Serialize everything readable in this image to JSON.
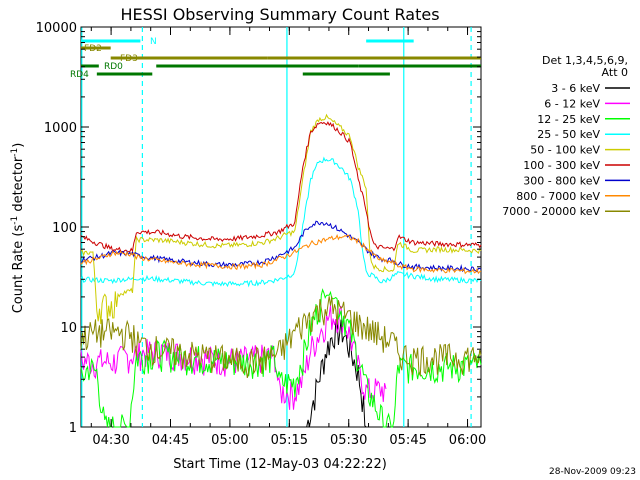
{
  "chart_data": {
    "type": "line",
    "title": "HESSI Observing Summary Count Rates",
    "xlabel": "Start Time (12-May-03 04:22:22)",
    "ylabel_main": "Count Rate (s",
    "ylabel_sup1": "-1",
    "ylabel_mid": " detector",
    "ylabel_sup2": "-1",
    "ylabel_end": ")",
    "y_scale": "log",
    "ylim": [
      1,
      10000
    ],
    "xlim_minutes": [
      0,
      101
    ],
    "x_ticks": [
      {
        "label": "04:30",
        "t": 7.6
      },
      {
        "label": "04:45",
        "t": 22.6
      },
      {
        "label": "05:00",
        "t": 37.6
      },
      {
        "label": "05:15",
        "t": 52.6
      },
      {
        "label": "05:30",
        "t": 67.6
      },
      {
        "label": "05:45",
        "t": 82.6
      },
      {
        "label": "06:00",
        "t": 97.6
      }
    ],
    "y_ticks": [
      {
        "label": "1",
        "v": 1
      },
      {
        "label": "10",
        "v": 10
      },
      {
        "label": "100",
        "v": 100
      },
      {
        "label": "1000",
        "v": 1000
      },
      {
        "label": "10000",
        "v": 10000
      }
    ],
    "legend_header": [
      "Det 1,3,4,5,6,9,",
      "Att 0"
    ],
    "legend_placement": "right",
    "series": [
      {
        "name": "3 - 6 keV",
        "color": "#000000",
        "points": [
          [
            57,
            1
          ],
          [
            60,
            3
          ],
          [
            62,
            6
          ],
          [
            64,
            9
          ],
          [
            66,
            9
          ],
          [
            68,
            6
          ],
          [
            70,
            3.5
          ],
          [
            71,
            2
          ],
          [
            72,
            1
          ]
        ]
      },
      {
        "name": "6 - 12 keV",
        "color": "#ff00ff",
        "points": [
          [
            0,
            4.6
          ],
          [
            8,
            4.5
          ],
          [
            14,
            5.5
          ],
          [
            20,
            5.8
          ],
          [
            26,
            5.3
          ],
          [
            34,
            4.8
          ],
          [
            40,
            4.7
          ],
          [
            46,
            5
          ],
          [
            49,
            5.2
          ],
          [
            50,
            2.3
          ],
          [
            54,
            2.2
          ],
          [
            56,
            3
          ],
          [
            58,
            6
          ],
          [
            61,
            10
          ],
          [
            63,
            13
          ],
          [
            66,
            13
          ],
          [
            68,
            8
          ],
          [
            70,
            4
          ],
          [
            72,
            2.3
          ],
          [
            76,
            2.4
          ],
          [
            77,
            2.4
          ]
        ]
      },
      {
        "name": "12 - 25 keV",
        "color": "#00ff00",
        "points": [
          [
            0,
            3
          ],
          [
            2,
            4
          ],
          [
            4,
            3.5
          ],
          [
            6,
            1
          ],
          [
            12,
            1
          ],
          [
            14,
            5
          ],
          [
            20,
            5.5
          ],
          [
            26,
            5
          ],
          [
            34,
            4.8
          ],
          [
            40,
            4.5
          ],
          [
            46,
            4.8
          ],
          [
            49,
            5
          ],
          [
            50,
            2.8
          ],
          [
            54,
            2.8
          ],
          [
            56,
            5
          ],
          [
            58,
            10
          ],
          [
            60,
            16
          ],
          [
            62,
            22
          ],
          [
            64,
            20
          ],
          [
            66,
            14
          ],
          [
            68,
            9
          ],
          [
            70,
            5
          ],
          [
            72,
            2.5
          ],
          [
            76,
            1.2
          ],
          [
            77,
            1
          ],
          [
            79,
            1
          ],
          [
            80,
            4
          ],
          [
            90,
            4
          ],
          [
            101,
            4.2
          ]
        ]
      },
      {
        "name": "25 - 50 keV",
        "color": "#00ffff",
        "points": [
          [
            0,
            30
          ],
          [
            8,
            29
          ],
          [
            10,
            30
          ],
          [
            13,
            30
          ],
          [
            14,
            31
          ],
          [
            20,
            30
          ],
          [
            28,
            28
          ],
          [
            34,
            27
          ],
          [
            40,
            27
          ],
          [
            46,
            28
          ],
          [
            50,
            30
          ],
          [
            52,
            32
          ],
          [
            54,
            35
          ],
          [
            56,
            100
          ],
          [
            58,
            300
          ],
          [
            60,
            450
          ],
          [
            62,
            480
          ],
          [
            64,
            450
          ],
          [
            66,
            380
          ],
          [
            68,
            300
          ],
          [
            70,
            150
          ],
          [
            71,
            60
          ],
          [
            72,
            35
          ],
          [
            74,
            32
          ],
          [
            76,
            28
          ],
          [
            80,
            34
          ],
          [
            90,
            30
          ],
          [
            101,
            29
          ]
        ]
      },
      {
        "name": "50 - 100 keV",
        "color": "#cccc00",
        "points": [
          [
            0,
            55
          ],
          [
            3,
            56
          ],
          [
            4,
            16
          ],
          [
            8,
            17
          ],
          [
            10,
            22
          ],
          [
            13,
            23
          ],
          [
            14,
            75
          ],
          [
            20,
            74
          ],
          [
            26,
            70
          ],
          [
            34,
            65
          ],
          [
            40,
            66
          ],
          [
            46,
            70
          ],
          [
            50,
            78
          ],
          [
            52,
            85
          ],
          [
            54,
            90
          ],
          [
            56,
            300
          ],
          [
            58,
            900
          ],
          [
            60,
            1200
          ],
          [
            62,
            1250
          ],
          [
            64,
            1100
          ],
          [
            66,
            950
          ],
          [
            68,
            800
          ],
          [
            70,
            400
          ],
          [
            72,
            250
          ],
          [
            73,
            50
          ],
          [
            74,
            40
          ],
          [
            76,
            38
          ],
          [
            79,
            37
          ],
          [
            80,
            70
          ],
          [
            84,
            58
          ],
          [
            90,
            60
          ],
          [
            101,
            58
          ]
        ]
      },
      {
        "name": "100 - 300 keV",
        "color": "#cc0000",
        "points": [
          [
            0,
            80
          ],
          [
            8,
            60
          ],
          [
            13,
            58
          ],
          [
            14,
            90
          ],
          [
            20,
            88
          ],
          [
            26,
            80
          ],
          [
            34,
            75
          ],
          [
            40,
            77
          ],
          [
            46,
            83
          ],
          [
            50,
            90
          ],
          [
            52,
            100
          ],
          [
            54,
            110
          ],
          [
            56,
            400
          ],
          [
            58,
            900
          ],
          [
            60,
            1100
          ],
          [
            62,
            1120
          ],
          [
            64,
            1000
          ],
          [
            66,
            850
          ],
          [
            68,
            700
          ],
          [
            70,
            300
          ],
          [
            72,
            150
          ],
          [
            73,
            90
          ],
          [
            74,
            65
          ],
          [
            76,
            62
          ],
          [
            79,
            60
          ],
          [
            80,
            80
          ],
          [
            84,
            70
          ],
          [
            90,
            68
          ],
          [
            101,
            66
          ]
        ]
      },
      {
        "name": "300 - 800 keV",
        "color": "#0000cc",
        "points": [
          [
            0,
            47
          ],
          [
            4,
            50
          ],
          [
            8,
            55
          ],
          [
            13,
            54
          ],
          [
            14,
            52
          ],
          [
            20,
            48
          ],
          [
            26,
            45
          ],
          [
            34,
            42
          ],
          [
            40,
            42
          ],
          [
            46,
            45
          ],
          [
            50,
            52
          ],
          [
            54,
            62
          ],
          [
            56,
            85
          ],
          [
            58,
            105
          ],
          [
            60,
            112
          ],
          [
            62,
            110
          ],
          [
            64,
            100
          ],
          [
            66,
            90
          ],
          [
            68,
            80
          ],
          [
            70,
            70
          ],
          [
            72,
            60
          ],
          [
            74,
            52
          ],
          [
            76,
            48
          ],
          [
            79,
            46
          ],
          [
            80,
            43
          ],
          [
            84,
            40
          ],
          [
            90,
            39
          ],
          [
            101,
            38
          ]
        ]
      },
      {
        "name": "800 - 7000 keV",
        "color": "#ff8800",
        "points": [
          [
            0,
            44
          ],
          [
            4,
            48
          ],
          [
            8,
            55
          ],
          [
            13,
            54
          ],
          [
            14,
            50
          ],
          [
            20,
            46
          ],
          [
            26,
            43
          ],
          [
            34,
            41
          ],
          [
            40,
            40
          ],
          [
            46,
            42
          ],
          [
            50,
            48
          ],
          [
            54,
            56
          ],
          [
            56,
            62
          ],
          [
            58,
            68
          ],
          [
            60,
            72
          ],
          [
            62,
            75
          ],
          [
            64,
            78
          ],
          [
            66,
            80
          ],
          [
            68,
            78
          ],
          [
            70,
            72
          ],
          [
            72,
            62
          ],
          [
            74,
            52
          ],
          [
            76,
            46
          ],
          [
            79,
            44
          ],
          [
            80,
            41
          ],
          [
            84,
            38
          ],
          [
            90,
            37
          ],
          [
            101,
            36
          ]
        ]
      },
      {
        "name": "7000 - 20000 keV",
        "color": "#888800",
        "points": [
          [
            0,
            8
          ],
          [
            4,
            9
          ],
          [
            8,
            9
          ],
          [
            13,
            8.5
          ],
          [
            14,
            7
          ],
          [
            20,
            6
          ],
          [
            26,
            5.5
          ],
          [
            34,
            5
          ],
          [
            40,
            4.6
          ],
          [
            46,
            4.8
          ],
          [
            50,
            5.5
          ],
          [
            52,
            7
          ],
          [
            54,
            9
          ],
          [
            56,
            11
          ],
          [
            58,
            13
          ],
          [
            60,
            15
          ],
          [
            62,
            16
          ],
          [
            64,
            15.5
          ],
          [
            66,
            14
          ],
          [
            68,
            12.5
          ],
          [
            70,
            11
          ],
          [
            72,
            10
          ],
          [
            74,
            9
          ],
          [
            76,
            8
          ],
          [
            79,
            7
          ],
          [
            80,
            5.5
          ],
          [
            84,
            5
          ],
          [
            90,
            5
          ],
          [
            101,
            5.2
          ]
        ]
      }
    ],
    "flags": [
      {
        "label": "N",
        "color": "#00ffff",
        "segments": [
          [
            0,
            15
          ],
          [
            72,
            84
          ]
        ],
        "level": 0
      },
      {
        "label": "FD2",
        "color": "#888800",
        "segments": [
          [
            0,
            7.5
          ]
        ],
        "level": 1
      },
      {
        "label": "FD3",
        "color": "#888800",
        "segments": [
          [
            7.5,
            47
          ],
          [
            47,
            101
          ]
        ],
        "level": 2
      },
      {
        "label": "RD0",
        "color": "#007700",
        "segments": [
          [
            0,
            4.5
          ],
          [
            19,
            70
          ],
          [
            70,
            101
          ]
        ],
        "level": 3
      },
      {
        "label": "RD4",
        "color": "#007700",
        "segments": [
          [
            4,
            18
          ],
          [
            56,
            78
          ]
        ],
        "level": 4
      }
    ],
    "vertical_markers": [
      {
        "t": 0.2,
        "color": "#00ffff",
        "style": "solid"
      },
      {
        "t": 15.5,
        "color": "#00ffff",
        "style": "dashed"
      },
      {
        "t": 52,
        "color": "#00ffff",
        "style": "solid"
      },
      {
        "t": 81.5,
        "color": "#00ffff",
        "style": "solid"
      },
      {
        "t": 98.5,
        "color": "#00ffff",
        "style": "dashed"
      }
    ]
  },
  "timestamp": "28-Nov-2009 09:23"
}
